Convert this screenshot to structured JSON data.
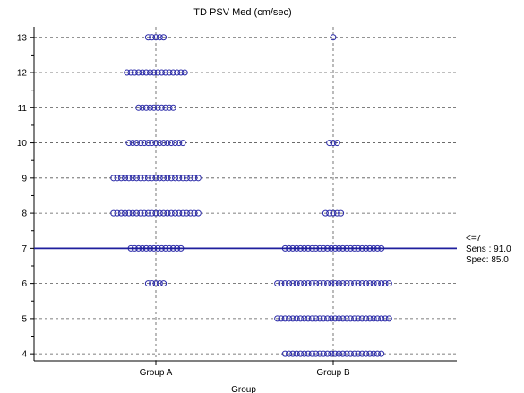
{
  "chart_data": {
    "type": "scatter",
    "subtype": "dot-plot",
    "title": "TD PSV Med (cm/sec)",
    "xlabel": "Group",
    "ylabel": "",
    "categories": [
      "Group A",
      "Group B"
    ],
    "ylim": [
      3.8,
      13.3
    ],
    "yticks": [
      4,
      5,
      6,
      7,
      8,
      9,
      10,
      11,
      12,
      13
    ],
    "grid": true,
    "marker": "open-circle",
    "marker_color": "#2a2aa8",
    "series": [
      {
        "category": "Group A",
        "points": [
          {
            "y": 13,
            "n": 5
          },
          {
            "y": 12,
            "n": 16
          },
          {
            "y": 11,
            "n": 10
          },
          {
            "y": 10,
            "n": 15
          },
          {
            "y": 9,
            "n": 23
          },
          {
            "y": 8,
            "n": 23
          },
          {
            "y": 7,
            "n": 14
          },
          {
            "y": 6,
            "n": 5
          }
        ]
      },
      {
        "category": "Group B",
        "points": [
          {
            "y": 13,
            "n": 1
          },
          {
            "y": 10,
            "n": 3
          },
          {
            "y": 8,
            "n": 5
          },
          {
            "y": 7,
            "n": 26
          },
          {
            "y": 6,
            "n": 30
          },
          {
            "y": 5,
            "n": 30
          },
          {
            "y": 4,
            "n": 26
          }
        ]
      }
    ],
    "cutoff": {
      "value": 7,
      "color": "#1f1f9e",
      "labels": [
        "<=7",
        "Sens : 91.0",
        "Spec: 85.0"
      ]
    }
  }
}
